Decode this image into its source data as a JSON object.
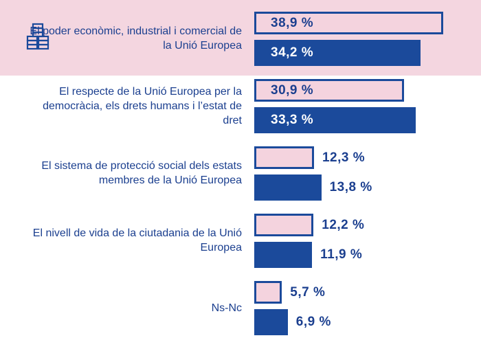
{
  "chart_data": {
    "type": "bar",
    "orientation": "horizontal",
    "categories": [
      "El poder econòmic, industrial i comercial de la Unió Europea",
      "El respecte de la Unió Europea per la democràcia, els drets humans i l’estat de dret",
      "El sistema de protecció social dels estats membres de la Unió Europea",
      "El nivell de vida de la ciutadania de la Unió Europea",
      "Ns-Nc"
    ],
    "series": [
      {
        "color": "#f4d3de",
        "values": [
          38.9,
          30.9,
          12.3,
          12.2,
          5.7
        ],
        "value_labels": [
          "38,9 %",
          "30,9 %",
          "12,3 %",
          "12,2 %",
          "5,7 %"
        ]
      },
      {
        "color": "#1b4a9b",
        "values": [
          34.2,
          33.3,
          13.8,
          11.9,
          6.9
        ],
        "value_labels": [
          "34,2 %",
          "33,3 %",
          "13,8 %",
          "11,9 %",
          "6,9 %"
        ]
      }
    ]
  }
}
